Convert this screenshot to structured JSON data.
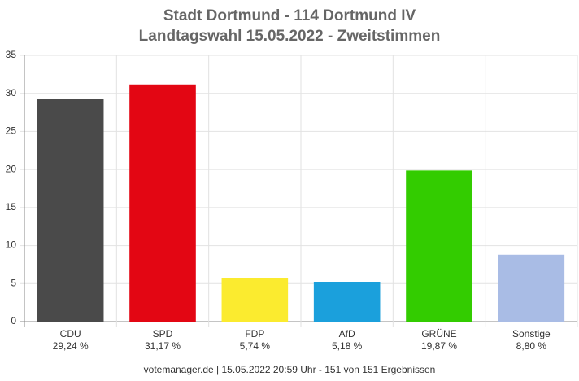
{
  "chart_data": {
    "type": "bar",
    "title": "Stadt Dortmund - 114 Dortmund IV",
    "subtitle": "Landtagswahl 15.05.2022  - Zweitstimmen",
    "footer": "votemanager.de | 15.05.2022 20:59 Uhr - 151 von 151 Ergebnissen",
    "categories": [
      "CDU",
      "SPD",
      "FDP",
      "AfD",
      "GRÜNE",
      "Sonstige"
    ],
    "values": [
      29.24,
      31.17,
      5.74,
      5.18,
      19.87,
      8.8
    ],
    "value_labels": [
      "29,24 %",
      "31,17 %",
      "5,74 %",
      "5,18 %",
      "19,87 %",
      "8,80 %"
    ],
    "colors": [
      "#4a4a4a",
      "#e30613",
      "#fbeb2f",
      "#1ba0dc",
      "#33cc00",
      "#a9bce5"
    ],
    "ylim": [
      0,
      35
    ],
    "yticks": [
      0,
      5,
      10,
      15,
      20,
      25,
      30,
      35
    ],
    "grid": true
  }
}
